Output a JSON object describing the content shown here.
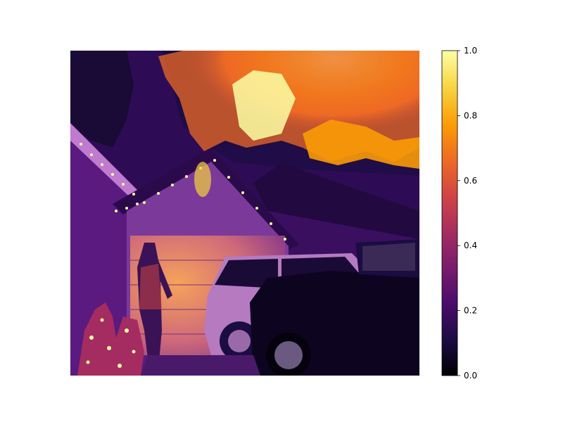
{
  "image": {
    "colormap": "inferno",
    "description_colors": [
      "#000004",
      "#1b0c41",
      "#4a0c6b",
      "#781c6d",
      "#a52c60",
      "#cf4446",
      "#ed6925",
      "#fb9b06",
      "#f7d13d",
      "#fcffa4"
    ]
  },
  "colorbar": {
    "min": 0.0,
    "max": 1.0,
    "ticks": [
      "0.0",
      "0.2",
      "0.4",
      "0.6",
      "0.8",
      "1.0"
    ],
    "tick_values": [
      0.0,
      0.2,
      0.4,
      0.6,
      0.8,
      1.0
    ]
  }
}
